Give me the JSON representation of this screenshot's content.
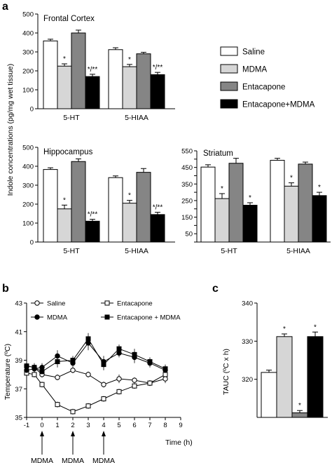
{
  "panel_labels": {
    "a": "a",
    "b": "b",
    "c": "c"
  },
  "colors": {
    "saline": "#ffffff",
    "mdma": "#d6d6d6",
    "entacapone": "#858585",
    "combo": "#000000",
    "stroke": "#000000"
  },
  "shared_ylabel": "Indole concentrations (pg/mg wet tissue)",
  "legend_a": [
    "Saline",
    "MDMA",
    "Entacapone",
    "Entacapone+MDMA"
  ],
  "legend_b": [
    {
      "label": "Saline",
      "marker": "open-circle"
    },
    {
      "label": "Entacapone",
      "marker": "open-square"
    },
    {
      "label": "MDMA",
      "marker": "filled-circle"
    },
    {
      "label": "Entacapone + MDMA",
      "marker": "filled-square"
    }
  ],
  "dose_arrows": {
    "times": [
      0,
      2,
      4
    ],
    "label": "MDMA"
  },
  "chart_data": [
    {
      "id": "frontal",
      "type": "bar",
      "title": "Frontal Cortex",
      "categories": [
        "5-HT",
        "5-HIAA"
      ],
      "ylim": [
        0,
        500
      ],
      "yticks": [
        0,
        100,
        200,
        300,
        400,
        500
      ],
      "series": [
        {
          "name": "Saline",
          "values": [
            358,
            312
          ],
          "err": [
            9,
            10
          ]
        },
        {
          "name": "MDMA",
          "values": [
            225,
            222
          ],
          "err": [
            12,
            12
          ]
        },
        {
          "name": "Entacapone",
          "values": [
            400,
            290
          ],
          "err": [
            15,
            8
          ]
        },
        {
          "name": "Entacapone+MDMA",
          "values": [
            170,
            180
          ],
          "err": [
            12,
            12
          ]
        }
      ],
      "annotations": [
        [
          "",
          "*",
          "",
          "*/**"
        ],
        [
          "",
          "*",
          "",
          "*/**"
        ]
      ]
    },
    {
      "id": "hippocampus",
      "type": "bar",
      "title": "Hippocampus",
      "categories": [
        "5-HT",
        "5-HIAA"
      ],
      "ylim": [
        0,
        500
      ],
      "yticks": [
        0,
        100,
        200,
        300,
        400,
        500
      ],
      "series": [
        {
          "name": "Saline",
          "values": [
            383,
            340
          ],
          "err": [
            9,
            9
          ]
        },
        {
          "name": "MDMA",
          "values": [
            175,
            205
          ],
          "err": [
            20,
            15
          ]
        },
        {
          "name": "Entacapone",
          "values": [
            425,
            368
          ],
          "err": [
            14,
            20
          ]
        },
        {
          "name": "Entacapone+MDMA",
          "values": [
            110,
            145
          ],
          "err": [
            10,
            12
          ]
        }
      ],
      "annotations": [
        [
          "",
          "*",
          "",
          "*/**"
        ],
        [
          "",
          "*",
          "",
          "*/**"
        ]
      ]
    },
    {
      "id": "striatum",
      "type": "bar",
      "title": "Striatum",
      "categories": [
        "5-HT",
        "5-HIAA"
      ],
      "ylim": [
        0,
        550
      ],
      "yticks": [
        0,
        50,
        100,
        150,
        200,
        250,
        300,
        350,
        400,
        450,
        500,
        550
      ],
      "series": [
        {
          "name": "Saline",
          "values": [
            452,
            493
          ],
          "err": [
            14,
            12
          ]
        },
        {
          "name": "MDMA",
          "values": [
            262,
            337
          ],
          "err": [
            30,
            20
          ]
        },
        {
          "name": "Entacapone",
          "values": [
            475,
            470
          ],
          "err": [
            30,
            12
          ]
        },
        {
          "name": "Entacapone+MDMA",
          "values": [
            222,
            280
          ],
          "err": [
            15,
            20
          ]
        }
      ],
      "annotations": [
        [
          "",
          "*",
          "",
          "*"
        ],
        [
          "",
          "*",
          "",
          "*"
        ]
      ]
    },
    {
      "id": "temperature",
      "type": "line",
      "xlabel": "Time (h)",
      "ylabel": "Temperature (ºC)",
      "xlim": [
        -1,
        9
      ],
      "ylim": [
        35,
        43
      ],
      "xticks": [
        -1,
        0,
        1,
        2,
        3,
        4,
        5,
        6,
        7,
        8,
        9
      ],
      "yticks": [
        35,
        37,
        39,
        41,
        43
      ],
      "x": [
        -1,
        -0.5,
        0,
        1,
        2,
        3,
        4,
        5,
        6,
        7,
        8
      ],
      "series": [
        {
          "name": "Saline",
          "marker": "open-circle",
          "values": [
            38.6,
            38.5,
            38.0,
            37.8,
            38.3,
            38.0,
            37.3,
            37.7,
            37.6,
            37.4,
            37.7
          ],
          "err": [
            0.2,
            0.2,
            0.2,
            0.2,
            0.2,
            0.2,
            0.2,
            0.3,
            0.2,
            0.2,
            0.3
          ]
        },
        {
          "name": "Entacapone",
          "marker": "open-square",
          "values": [
            38.1,
            38.0,
            37.3,
            35.9,
            35.4,
            35.8,
            36.3,
            36.8,
            37.2,
            37.4,
            38.0
          ],
          "err": [
            0.2,
            0.2,
            0.2,
            0.2,
            0.2,
            0.2,
            0.2,
            0.2,
            0.2,
            0.2,
            0.3
          ]
        },
        {
          "name": "MDMA",
          "marker": "filled-circle",
          "values": [
            38.3,
            38.4,
            38.5,
            39.3,
            38.8,
            40.2,
            38.9,
            39.5,
            39.2,
            38.8,
            38.3
          ],
          "err": [
            0.3,
            0.3,
            0.3,
            0.4,
            0.3,
            0.5,
            0.4,
            0.3,
            0.4,
            0.3,
            0.3
          ]
        },
        {
          "name": "Entacapone + MDMA",
          "marker": "filled-square",
          "values": [
            38.6,
            38.5,
            38.2,
            38.9,
            39.0,
            40.5,
            38.7,
            39.8,
            39.4,
            38.9,
            38.4
          ],
          "err": [
            0.3,
            0.3,
            0.3,
            0.4,
            0.3,
            0.4,
            0.4,
            0.3,
            0.4,
            0.3,
            0.3
          ]
        }
      ]
    },
    {
      "id": "tauc",
      "type": "bar",
      "ylabel": "TAUC (ºC x h)",
      "ylim": [
        310,
        340
      ],
      "yticks": [
        320,
        330,
        340
      ],
      "series": [
        {
          "name": "Saline",
          "values": [
            321.8
          ],
          "err": [
            0.6
          ]
        },
        {
          "name": "MDMA",
          "values": [
            331.2
          ],
          "err": [
            0.7
          ]
        },
        {
          "name": "Entacapone",
          "values": [
            311.2
          ],
          "err": [
            0.6
          ]
        },
        {
          "name": "Entacapone+MDMA",
          "values": [
            331.2
          ],
          "err": [
            1.2
          ]
        }
      ],
      "annotations": [
        "",
        "*",
        "*",
        "*"
      ]
    }
  ]
}
